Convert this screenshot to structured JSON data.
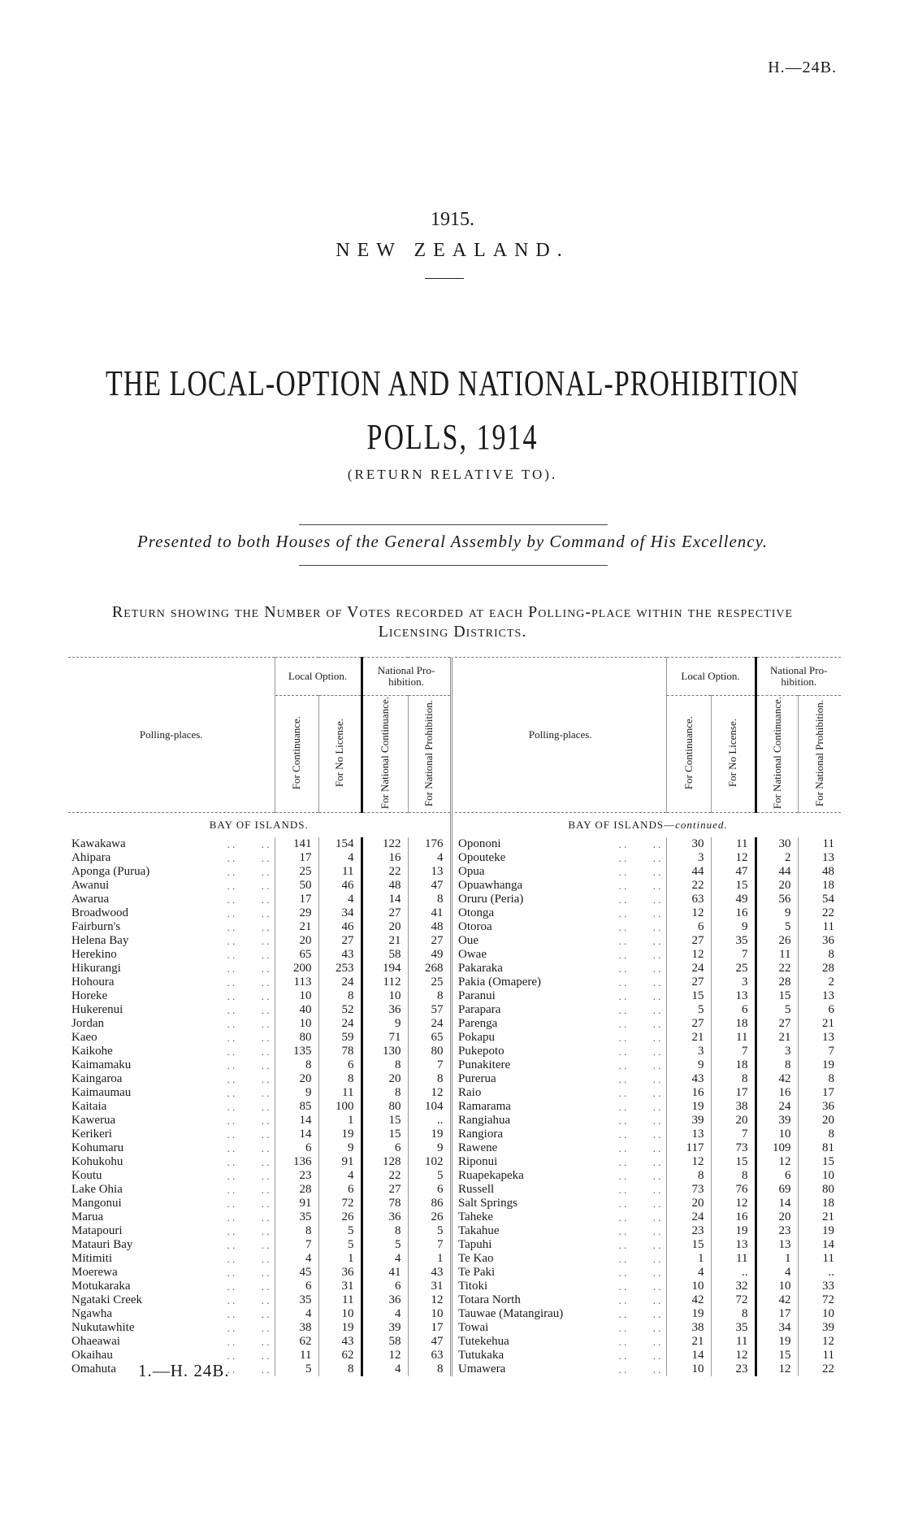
{
  "page_ref": "H.—24B.",
  "year": "1915.",
  "country": "NEW ZEALAND.",
  "title_line1": "THE LOCAL-OPTION AND NATIONAL-PROHIBITION",
  "title_line2": "POLLS, 1914",
  "subtitle": "(RETURN RELATIVE TO).",
  "presented": "Presented to both Houses of the General Assembly by Command of His Excellency.",
  "heading_line1": "Return showing the Number of Votes recorded at each Polling-place within the respective",
  "heading_line2": "Licensing Districts.",
  "table_header": {
    "polling_places": "Polling-places.",
    "local_option": "Local Option.",
    "national_prohibition": "National Pro-hibition.",
    "columns": [
      "For Continuance.",
      "For No License.",
      "For National Continuance.",
      "For National Prohibition."
    ]
  },
  "left_section": "BAY OF ISLANDS.",
  "right_section": {
    "district": "BAY OF ISLANDS—",
    "suffix": "continued."
  },
  "left_rows": [
    [
      "Kawakawa",
      "141",
      "154",
      "122",
      "176"
    ],
    [
      "Ahipara",
      "17",
      "4",
      "16",
      "4"
    ],
    [
      "Aponga (Purua)",
      "25",
      "11",
      "22",
      "13"
    ],
    [
      "Awanui",
      "50",
      "46",
      "48",
      "47"
    ],
    [
      "Awarua",
      "17",
      "4",
      "14",
      "8"
    ],
    [
      "Broadwood",
      "29",
      "34",
      "27",
      "41"
    ],
    [
      "Fairburn's",
      "21",
      "46",
      "20",
      "48"
    ],
    [
      "Helena Bay",
      "20",
      "27",
      "21",
      "27"
    ],
    [
      "Herekino",
      "65",
      "43",
      "58",
      "49"
    ],
    [
      "Hikurangi",
      "200",
      "253",
      "194",
      "268"
    ],
    [
      "Hohoura",
      "113",
      "24",
      "112",
      "25"
    ],
    [
      "Horeke",
      "10",
      "8",
      "10",
      "8"
    ],
    [
      "Hukerenui",
      "40",
      "52",
      "36",
      "57"
    ],
    [
      "Jordan",
      "10",
      "24",
      "9",
      "24"
    ],
    [
      "Kaeo",
      "80",
      "59",
      "71",
      "65"
    ],
    [
      "Kaikohe",
      "135",
      "78",
      "130",
      "80"
    ],
    [
      "Kaimamaku",
      "8",
      "6",
      "8",
      "7"
    ],
    [
      "Kaingaroa",
      "20",
      "8",
      "20",
      "8"
    ],
    [
      "Kaimaumau",
      "9",
      "11",
      "8",
      "12"
    ],
    [
      "Kaitaia",
      "85",
      "100",
      "80",
      "104"
    ],
    [
      "Kawerua",
      "14",
      "1",
      "15",
      ".."
    ],
    [
      "Kerikeri",
      "14",
      "19",
      "15",
      "19"
    ],
    [
      "Kohumaru",
      "6",
      "9",
      "6",
      "9"
    ],
    [
      "Kohukohu",
      "136",
      "91",
      "128",
      "102"
    ],
    [
      "Koutu",
      "23",
      "4",
      "22",
      "5"
    ],
    [
      "Lake Ohia",
      "28",
      "6",
      "27",
      "6"
    ],
    [
      "Mangonui",
      "91",
      "72",
      "78",
      "86"
    ],
    [
      "Marua",
      "35",
      "26",
      "36",
      "26"
    ],
    [
      "Matapouri",
      "8",
      "5",
      "8",
      "5"
    ],
    [
      "Matauri Bay",
      "7",
      "5",
      "5",
      "7"
    ],
    [
      "Mitimiti",
      "4",
      "1",
      "4",
      "1"
    ],
    [
      "Moerewa",
      "45",
      "36",
      "41",
      "43"
    ],
    [
      "Motukaraka",
      "6",
      "31",
      "6",
      "31"
    ],
    [
      "Ngataki Creek",
      "35",
      "11",
      "36",
      "12"
    ],
    [
      "Ngawha",
      "4",
      "10",
      "4",
      "10"
    ],
    [
      "Nukutawhite",
      "38",
      "19",
      "39",
      "17"
    ],
    [
      "Ohaeawai",
      "62",
      "43",
      "58",
      "47"
    ],
    [
      "Okaihau",
      "11",
      "62",
      "12",
      "63"
    ],
    [
      "Omahuta",
      "5",
      "8",
      "4",
      "8"
    ]
  ],
  "right_rows": [
    [
      "Opononi",
      "30",
      "11",
      "30",
      "11"
    ],
    [
      "Opouteke",
      "3",
      "12",
      "2",
      "13"
    ],
    [
      "Opua",
      "44",
      "47",
      "44",
      "48"
    ],
    [
      "Opuawhanga",
      "22",
      "15",
      "20",
      "18"
    ],
    [
      "Oruru (Peria)",
      "63",
      "49",
      "56",
      "54"
    ],
    [
      "Otonga",
      "12",
      "16",
      "9",
      "22"
    ],
    [
      "Otoroa",
      "6",
      "9",
      "5",
      "11"
    ],
    [
      "Oue",
      "27",
      "35",
      "26",
      "36"
    ],
    [
      "Owae",
      "12",
      "7",
      "11",
      "8"
    ],
    [
      "Pakaraka",
      "24",
      "25",
      "22",
      "28"
    ],
    [
      "Pakia (Omapere)",
      "27",
      "3",
      "28",
      "2"
    ],
    [
      "Paranui",
      "15",
      "13",
      "15",
      "13"
    ],
    [
      "Parapara",
      "5",
      "6",
      "5",
      "6"
    ],
    [
      "Parenga",
      "27",
      "18",
      "27",
      "21"
    ],
    [
      "Pokapu",
      "21",
      "11",
      "21",
      "13"
    ],
    [
      "Pukepoto",
      "3",
      "7",
      "3",
      "7"
    ],
    [
      "Punakitere",
      "9",
      "18",
      "8",
      "19"
    ],
    [
      "Purerua",
      "43",
      "8",
      "42",
      "8"
    ],
    [
      "Raio",
      "16",
      "17",
      "16",
      "17"
    ],
    [
      "Ramarama",
      "19",
      "38",
      "24",
      "36"
    ],
    [
      "Rangiahua",
      "39",
      "20",
      "39",
      "20"
    ],
    [
      "Rangiora",
      "13",
      "7",
      "10",
      "8"
    ],
    [
      "Rawene",
      "117",
      "73",
      "109",
      "81"
    ],
    [
      "Riponui",
      "12",
      "15",
      "12",
      "15"
    ],
    [
      "Ruapekapeka",
      "8",
      "8",
      "6",
      "10"
    ],
    [
      "Russell",
      "73",
      "76",
      "69",
      "80"
    ],
    [
      "Salt Springs",
      "20",
      "12",
      "14",
      "18"
    ],
    [
      "Taheke",
      "24",
      "16",
      "20",
      "21"
    ],
    [
      "Takahue",
      "23",
      "19",
      "23",
      "19"
    ],
    [
      "Tapuhi",
      "15",
      "13",
      "13",
      "14"
    ],
    [
      "Te Kao",
      "1",
      "11",
      "1",
      "11"
    ],
    [
      "Te Paki",
      "4",
      "..",
      "4",
      ".."
    ],
    [
      "Titoki",
      "10",
      "32",
      "10",
      "33"
    ],
    [
      "Totara North",
      "42",
      "72",
      "42",
      "72"
    ],
    [
      "Tauwae (Matangirau)",
      "19",
      "8",
      "17",
      "10"
    ],
    [
      "Towai",
      "38",
      "35",
      "34",
      "39"
    ],
    [
      "Tutekehua",
      "21",
      "11",
      "19",
      "12"
    ],
    [
      "Tutukaka",
      "14",
      "12",
      "15",
      "11"
    ],
    [
      "Umawera",
      "10",
      "23",
      "12",
      "22"
    ]
  ],
  "footer": "1.—H. 24B."
}
